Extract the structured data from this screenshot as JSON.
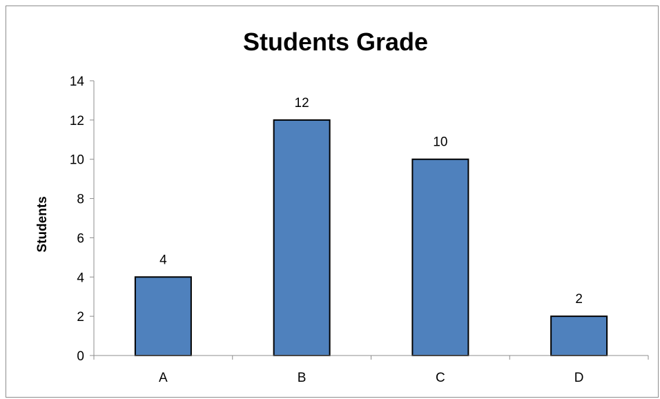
{
  "chart_data": {
    "type": "bar",
    "title": "Students Grade",
    "xlabel": "",
    "ylabel": "Students",
    "categories": [
      "A",
      "B",
      "C",
      "D"
    ],
    "values": [
      4,
      12,
      10,
      2
    ],
    "data_labels": [
      "4",
      "12",
      "10",
      "2"
    ],
    "ylim": [
      0,
      14
    ],
    "yticks": [
      0,
      2,
      4,
      6,
      8,
      10,
      12,
      14
    ],
    "grid": false,
    "legend": "none",
    "bar_color": "#4f81bd",
    "bar_edge_color": "#000000"
  }
}
